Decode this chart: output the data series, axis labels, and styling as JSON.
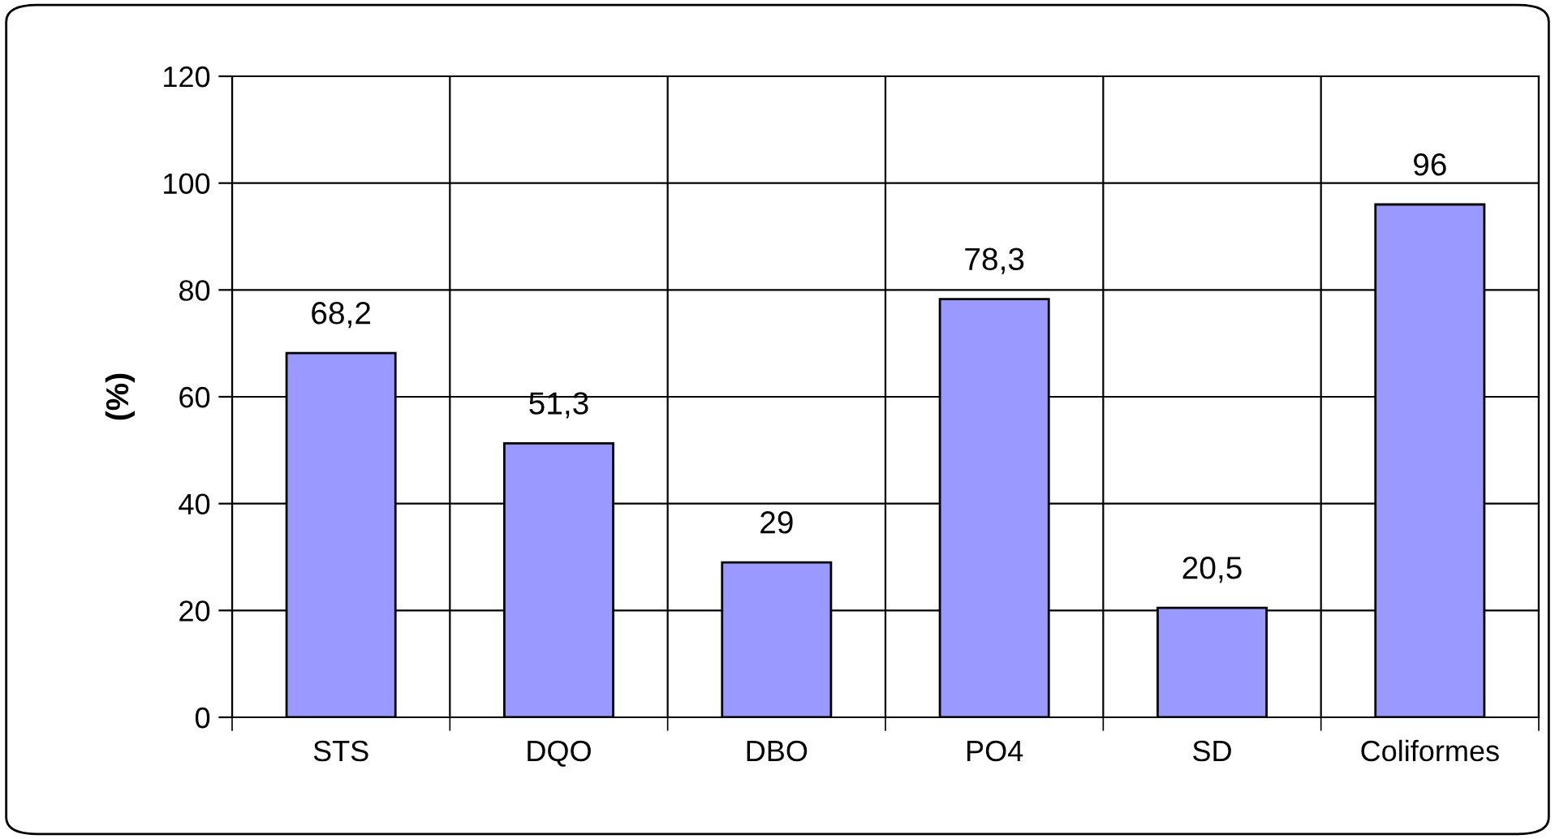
{
  "chart_data": {
    "type": "bar",
    "ylabel": "(%)",
    "categories": [
      "STS",
      "DQO",
      "DBO",
      "PO4",
      "SD",
      "Coliformes"
    ],
    "values": [
      68.2,
      51.3,
      29,
      78.3,
      20.5,
      96
    ],
    "value_labels": [
      "68,2",
      "51,3",
      "29",
      "78,3",
      "20,5",
      "96"
    ],
    "color": "#9999ff",
    "ylim": [
      0,
      120
    ],
    "yticks": [
      0,
      20,
      40,
      60,
      80,
      100,
      120
    ],
    "grid": true,
    "legend": false
  }
}
